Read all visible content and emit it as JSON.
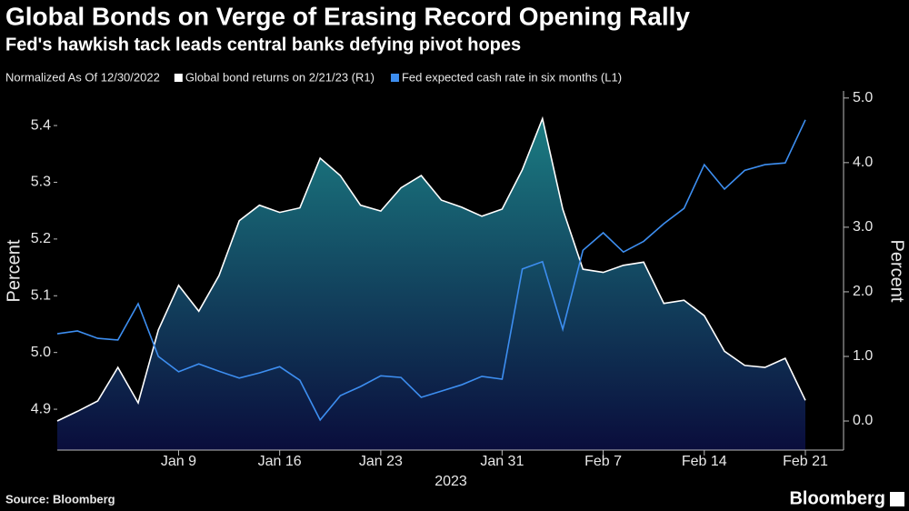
{
  "chart_data": {
    "type": "area-line",
    "title": "Global Bonds on Verge of Erasing Record Opening Rally",
    "subtitle": "Fed's hawkish tack leads central banks defying pivot hopes",
    "note": "Normalized As Of 12/30/2022",
    "x_label": "2023",
    "y_label": "Percent",
    "y2_label": "Percent",
    "source": "Source: Bloomberg",
    "brand": "Bloomberg",
    "categories": [
      null,
      null,
      null,
      null,
      null,
      null,
      "Jan 9",
      null,
      null,
      null,
      null,
      "Jan 16",
      null,
      null,
      null,
      null,
      "Jan 23",
      null,
      null,
      null,
      null,
      null,
      "Jan 31",
      null,
      null,
      null,
      null,
      "Feb 7",
      null,
      null,
      null,
      null,
      "Feb 14",
      null,
      null,
      null,
      null,
      "Feb 21"
    ],
    "series": [
      {
        "name": "Global bond returns on 2/21/23 (R1)",
        "color": "#ffffff",
        "axis": "y2",
        "values": [
          0,
          0.15,
          0.31,
          0.83,
          0.28,
          1.41,
          2.1,
          1.7,
          2.25,
          3.1,
          3.34,
          3.23,
          3.3,
          4.07,
          3.8,
          3.34,
          3.25,
          3.61,
          3.8,
          3.42,
          3.31,
          3.17,
          3.28,
          3.89,
          4.68,
          3.28,
          2.35,
          2.3,
          2.41,
          2.46,
          1.82,
          1.87,
          1.63,
          1.08,
          0.86,
          0.83,
          0.97,
          0.32
        ]
      },
      {
        "name": "Fed expected cash rate in six months (L1)",
        "color": "#3d8ef0",
        "axis": "y",
        "values": [
          5.033,
          5.038,
          5.025,
          5.022,
          5.086,
          4.993,
          4.966,
          4.98,
          4.967,
          4.955,
          4.964,
          4.975,
          4.951,
          4.881,
          4.924,
          4.94,
          4.959,
          4.956,
          4.921,
          4.932,
          4.943,
          4.958,
          4.953,
          5.147,
          5.16,
          5.041,
          5.18,
          5.211,
          5.177,
          5.196,
          5.227,
          5.254,
          5.331,
          5.288,
          5.321,
          5.331,
          5.334,
          5.41
        ]
      }
    ],
    "ylim": [
      4.828,
      5.461
    ],
    "yticks": [
      4.9,
      {
        "value": 5,
        "label": "5.0"
      },
      5.1,
      5.2,
      5.3,
      5.4
    ],
    "y2lim": [
      -0.45,
      5.11
    ],
    "y2ticks": [
      {
        "value": 0,
        "label": "0.0"
      },
      {
        "value": 1,
        "label": "1.0"
      },
      {
        "value": 2,
        "label": "2.0"
      },
      {
        "value": 3,
        "label": "3.0"
      },
      {
        "value": 4,
        "label": "4.0"
      },
      {
        "value": 5,
        "label": "5.0"
      }
    ],
    "gradient": [
      "#1b7c82",
      "#0a0d3c"
    ],
    "background": "#000000"
  }
}
